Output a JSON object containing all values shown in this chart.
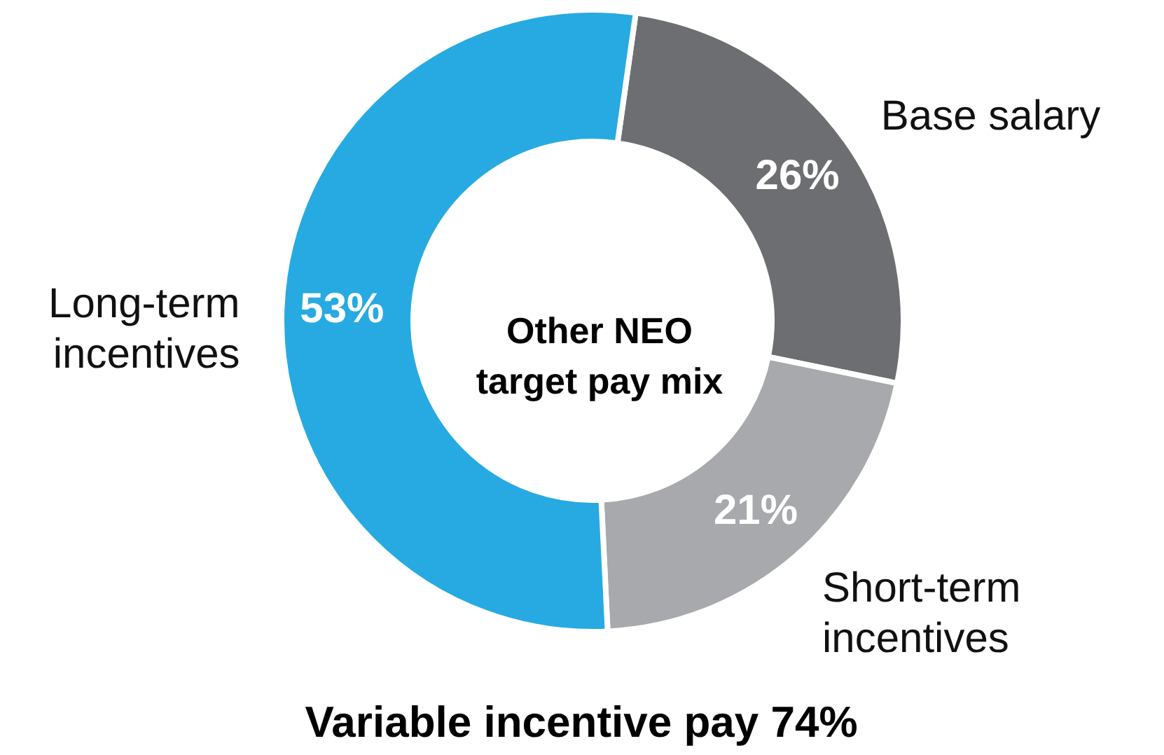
{
  "chart_data": {
    "type": "donut",
    "title": "Other NEO target pay mix",
    "categories": [
      "Base salary",
      "Short-term incentives",
      "Long-term incentives"
    ],
    "values": [
      26,
      21,
      53
    ],
    "colors": [
      "#6d6e71",
      "#a7a9ac",
      "#27aae1"
    ],
    "value_labels": [
      "26%",
      "21%",
      "53%"
    ],
    "annotations": [
      "Variable incentive pay 74%"
    ]
  }
}
